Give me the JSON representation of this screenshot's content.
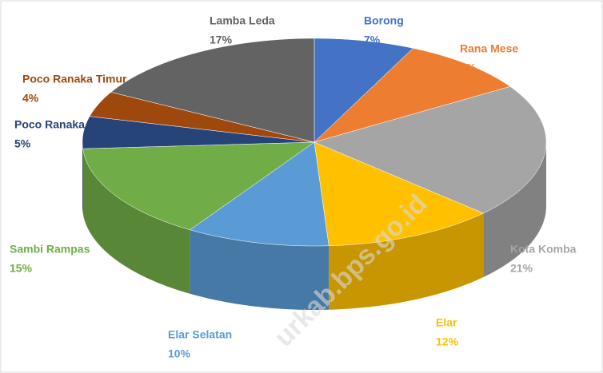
{
  "chart_data": {
    "type": "pie",
    "categories": [
      "Borong",
      "Rana Mese",
      "Kota Komba",
      "Elar",
      "Elar Selatan",
      "Sambi Rampas",
      "Poco Ranaka",
      "Poco Ranaka Timur",
      "Lamba Leda"
    ],
    "values": [
      7,
      9,
      21,
      12,
      10,
      15,
      5,
      4,
      17
    ],
    "value_labels": [
      "7%",
      "9%",
      "21%",
      "12%",
      "10%",
      "15%",
      "5%",
      "4%",
      "17%"
    ],
    "colors": [
      "#4472c4",
      "#ed7d31",
      "#a5a5a5",
      "#ffc000",
      "#5b9bd5",
      "#70ad47",
      "#264478",
      "#9e480e",
      "#636363"
    ],
    "watermark": "urkab.bps.go.id"
  }
}
